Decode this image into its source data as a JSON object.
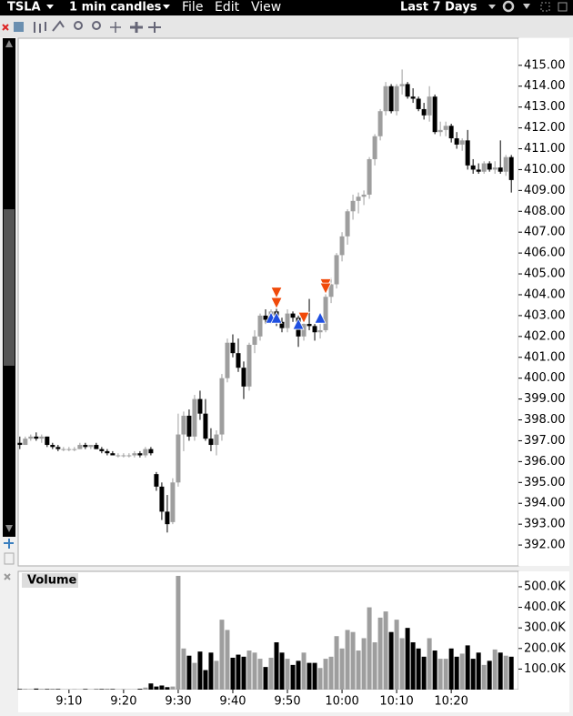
{
  "toolbar": {
    "symbol": "TSLA",
    "interval": "1 min candles",
    "menus": [
      "File",
      "Edit",
      "View"
    ],
    "range": "Last 7 Days"
  },
  "chart_data": [
    {
      "type": "candlestick",
      "up_color": "#9e9e9e",
      "down_color": "#000000",
      "xlim": [
        540.7,
        632.3
      ],
      "ylim": [
        391,
        416.3
      ],
      "yticks": [
        {
          "value": 392,
          "label": "392.00"
        },
        {
          "value": 393,
          "label": "393.00"
        },
        {
          "value": 394,
          "label": "394.00"
        },
        {
          "value": 395,
          "label": "395.00"
        },
        {
          "value": 396,
          "label": "396.00"
        },
        {
          "value": 397,
          "label": "397.00"
        },
        {
          "value": 398,
          "label": "398.00"
        },
        {
          "value": 399,
          "label": "399.00"
        },
        {
          "value": 400,
          "label": "400.00"
        },
        {
          "value": 401,
          "label": "401.00"
        },
        {
          "value": 402,
          "label": "402.00"
        },
        {
          "value": 403,
          "label": "403.00"
        },
        {
          "value": 404,
          "label": "404.00"
        },
        {
          "value": 405,
          "label": "405.00"
        },
        {
          "value": 406,
          "label": "406.00"
        },
        {
          "value": 407,
          "label": "407.00"
        },
        {
          "value": 408,
          "label": "408.00"
        },
        {
          "value": 409,
          "label": "409.00"
        },
        {
          "value": 410,
          "label": "410.00"
        },
        {
          "value": 411,
          "label": "411.00"
        },
        {
          "value": 412,
          "label": "412.00"
        },
        {
          "value": 413,
          "label": "413.00"
        },
        {
          "value": 414,
          "label": "414.00"
        },
        {
          "value": 415,
          "label": "415.00"
        }
      ],
      "x": [
        541,
        542,
        543,
        544,
        545,
        546,
        547,
        548,
        549,
        550,
        551,
        552,
        553,
        554,
        555,
        556,
        557,
        558,
        559,
        560,
        561,
        562,
        563,
        564,
        565,
        566,
        567,
        568,
        569,
        570,
        571,
        572,
        573,
        574,
        575,
        576,
        577,
        578,
        579,
        580,
        581,
        582,
        583,
        584,
        585,
        586,
        587,
        588,
        589,
        590,
        591,
        592,
        593,
        594,
        595,
        596,
        597,
        598,
        599,
        600,
        601,
        602,
        603,
        604,
        605,
        606,
        607,
        608,
        609,
        610,
        611,
        612,
        613,
        614,
        615,
        616,
        617,
        618,
        619,
        620,
        621,
        622,
        623,
        624,
        625,
        626,
        627,
        628,
        629,
        630,
        631
      ],
      "open": [
        396.9,
        396.8,
        397.1,
        397.2,
        397.1,
        397.2,
        396.8,
        396.7,
        396.6,
        396.6,
        396.6,
        396.6,
        396.8,
        396.7,
        396.8,
        396.6,
        396.5,
        396.4,
        396.3,
        396.3,
        396.3,
        396.3,
        396.4,
        396.3,
        396.6,
        395.4,
        394.8,
        393.6,
        393.1,
        395.0,
        397.3,
        398.2,
        397.2,
        399.0,
        398.3,
        397.1,
        396.8,
        397.3,
        400.0,
        401.7,
        401.2,
        400.5,
        399.6,
        401.6,
        402.0,
        403.0,
        402.8,
        403.2,
        402.7,
        402.4,
        403.1,
        402.9,
        402.0,
        402.6,
        402.5,
        402.2,
        402.3,
        403.9,
        404.5,
        405.9,
        406.8,
        408.0,
        408.5,
        408.7,
        408.8,
        410.5,
        411.6,
        412.8,
        414.0,
        412.8,
        414.0,
        414.1,
        413.5,
        413.4,
        412.9,
        412.6,
        413.5,
        411.8,
        411.9,
        412.1,
        411.5,
        411.2,
        411.4,
        410.2,
        410.0,
        409.9,
        410.3,
        410.0,
        410.1,
        409.9,
        410.6
      ],
      "high": [
        397.2,
        397.2,
        397.3,
        397.4,
        397.3,
        397.2,
        396.9,
        396.8,
        396.7,
        396.7,
        396.7,
        396.9,
        396.9,
        396.8,
        396.9,
        396.7,
        396.6,
        396.5,
        396.4,
        396.4,
        396.4,
        396.5,
        396.5,
        396.7,
        396.7,
        395.5,
        395.0,
        394.4,
        395.2,
        398.3,
        398.4,
        398.5,
        399.2,
        399.4,
        399.0,
        397.6,
        397.5,
        400.2,
        401.9,
        402.1,
        401.9,
        400.8,
        401.7,
        402.3,
        403.1,
        403.3,
        403.3,
        403.4,
        402.9,
        403.3,
        403.2,
        403.0,
        402.8,
        403.8,
        402.6,
        402.6,
        404.3,
        404.8,
        406.0,
        407.0,
        408.1,
        408.8,
        408.9,
        409.0,
        410.6,
        411.7,
        412.9,
        414.2,
        414.1,
        414.1,
        414.8,
        414.2,
        413.9,
        413.5,
        413.2,
        414.0,
        413.6,
        412.3,
        412.3,
        412.2,
        411.8,
        411.5,
        411.9,
        410.5,
        410.3,
        410.4,
        410.4,
        410.4,
        411.4,
        410.7,
        410.7
      ],
      "low": [
        396.6,
        396.8,
        397.0,
        397.0,
        396.9,
        396.7,
        396.6,
        396.5,
        396.5,
        396.5,
        396.5,
        396.6,
        396.6,
        396.6,
        396.6,
        396.4,
        396.3,
        396.3,
        396.2,
        396.2,
        396.2,
        396.2,
        396.2,
        396.2,
        396.3,
        394.6,
        393.2,
        392.6,
        393.0,
        394.8,
        396.5,
        397.0,
        397.0,
        398.0,
        397.0,
        396.5,
        396.3,
        397.0,
        399.8,
        401.0,
        400.3,
        399.0,
        399.4,
        401.2,
        401.8,
        402.6,
        402.6,
        402.5,
        402.2,
        402.2,
        402.7,
        401.5,
        401.8,
        402.3,
        401.8,
        401.9,
        402.2,
        403.6,
        404.3,
        405.6,
        406.4,
        407.6,
        407.9,
        408.3,
        408.6,
        410.2,
        411.4,
        412.6,
        412.7,
        412.6,
        413.6,
        413.4,
        413.2,
        412.8,
        412.4,
        412.3,
        411.7,
        411.6,
        411.6,
        411.3,
        411.0,
        410.9,
        410.0,
        409.8,
        409.8,
        409.8,
        409.9,
        409.8,
        409.8,
        409.7,
        408.9
      ],
      "close": [
        396.8,
        397.1,
        397.2,
        397.1,
        397.2,
        396.8,
        396.7,
        396.6,
        396.6,
        396.6,
        396.6,
        396.8,
        396.7,
        396.8,
        396.6,
        396.5,
        396.4,
        396.3,
        396.3,
        396.3,
        396.3,
        396.4,
        396.3,
        396.6,
        396.4,
        394.8,
        393.6,
        393.0,
        395.0,
        397.3,
        398.2,
        397.2,
        399.0,
        398.3,
        397.1,
        396.8,
        397.3,
        400.0,
        401.7,
        401.2,
        400.5,
        399.6,
        401.6,
        402.0,
        403.0,
        402.8,
        403.2,
        402.7,
        402.4,
        403.1,
        402.9,
        402.0,
        402.6,
        402.5,
        402.2,
        402.3,
        403.9,
        404.5,
        405.9,
        406.8,
        408.0,
        408.5,
        408.7,
        408.8,
        410.5,
        411.6,
        412.8,
        414.0,
        412.8,
        414.0,
        414.1,
        413.5,
        413.4,
        412.9,
        412.6,
        413.5,
        411.8,
        411.9,
        412.1,
        411.5,
        411.2,
        411.4,
        410.2,
        410.0,
        409.9,
        410.3,
        410.0,
        410.1,
        409.9,
        410.6,
        409.5
      ],
      "buy_markers": {
        "color": "#1f4fe0",
        "x": [
          587,
          588,
          592,
          596
        ],
        "y": [
          402.9,
          402.9,
          402.6,
          402.9
        ]
      },
      "sell_markers": {
        "color": "#f04a0a",
        "x": [
          588,
          588,
          593,
          597,
          597
        ],
        "y": [
          404.1,
          403.6,
          402.9,
          404.5,
          404.3
        ]
      }
    },
    {
      "type": "bar",
      "title": "Volume",
      "up_color": "#9e9e9e",
      "down_color": "#000000",
      "xlim": [
        540.7,
        632.3
      ],
      "ylim": [
        0,
        575000
      ],
      "yticks": [
        {
          "value": 100000,
          "label": "100.0K"
        },
        {
          "value": 200000,
          "label": "200.0K"
        },
        {
          "value": 300000,
          "label": "300.0K"
        },
        {
          "value": 400000,
          "label": "400.0K"
        },
        {
          "value": 500000,
          "label": "500.0K"
        }
      ],
      "xticks": [
        {
          "value": 550,
          "label": "9:10"
        },
        {
          "value": 560,
          "label": "9:20"
        },
        {
          "value": 570,
          "label": "9:30"
        },
        {
          "value": 580,
          "label": "9:40"
        },
        {
          "value": 590,
          "label": "9:50"
        },
        {
          "value": 600,
          "label": "10:00"
        },
        {
          "value": 610,
          "label": "10:10"
        },
        {
          "value": 620,
          "label": "10:20"
        }
      ],
      "x": [
        541,
        542,
        543,
        544,
        545,
        546,
        547,
        548,
        549,
        550,
        551,
        552,
        553,
        554,
        555,
        556,
        557,
        558,
        559,
        560,
        561,
        562,
        563,
        564,
        565,
        566,
        567,
        568,
        569,
        570,
        571,
        572,
        573,
        574,
        575,
        576,
        577,
        578,
        579,
        580,
        581,
        582,
        583,
        584,
        585,
        586,
        587,
        588,
        589,
        590,
        591,
        592,
        593,
        594,
        595,
        596,
        597,
        598,
        599,
        600,
        601,
        602,
        603,
        604,
        605,
        606,
        607,
        608,
        609,
        610,
        611,
        612,
        613,
        614,
        615,
        616,
        617,
        618,
        619,
        620,
        621,
        622,
        623,
        624,
        625,
        626,
        627,
        628,
        629,
        630,
        631
      ],
      "values": [
        3000,
        4000,
        3000,
        5000,
        4000,
        3000,
        2000,
        3000,
        2000,
        2000,
        3000,
        2000,
        3000,
        2000,
        2000,
        3000,
        2000,
        3000,
        2000,
        3000,
        2000,
        2000,
        4000,
        10000,
        30000,
        15000,
        20000,
        12000,
        15000,
        553000,
        200000,
        165000,
        130000,
        185000,
        95000,
        180000,
        140000,
        340000,
        290000,
        155000,
        170000,
        160000,
        190000,
        180000,
        150000,
        110000,
        155000,
        230000,
        180000,
        150000,
        120000,
        140000,
        180000,
        130000,
        130000,
        105000,
        150000,
        160000,
        260000,
        200000,
        290000,
        280000,
        190000,
        250000,
        400000,
        230000,
        350000,
        380000,
        280000,
        340000,
        250000,
        300000,
        230000,
        200000,
        160000,
        250000,
        190000,
        150000,
        150000,
        200000,
        160000,
        175000,
        215000,
        150000,
        180000,
        120000,
        140000,
        195000,
        180000,
        165000,
        160000
      ]
    }
  ]
}
